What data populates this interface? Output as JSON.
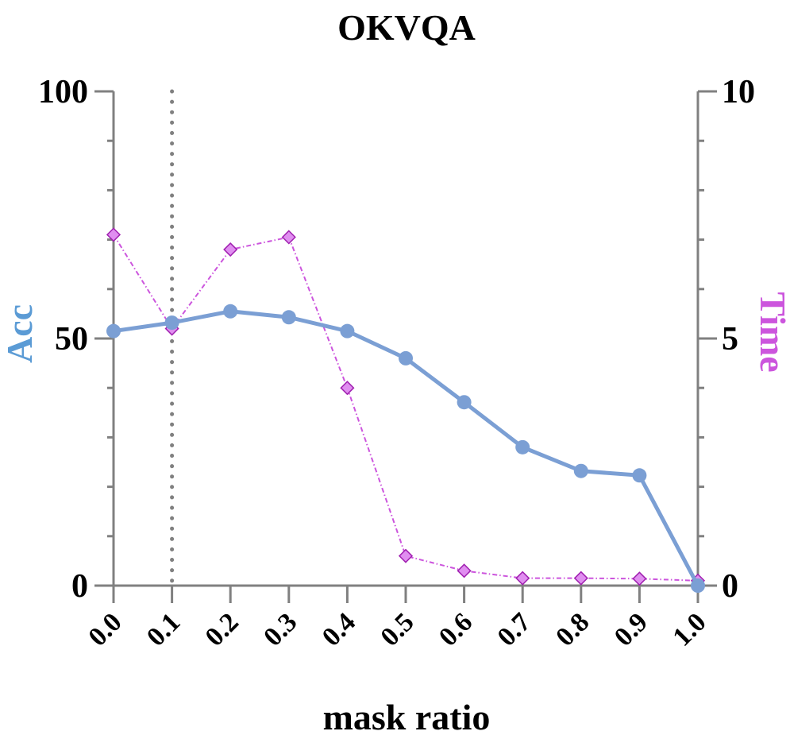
{
  "chart_data": {
    "type": "line",
    "title": "OKVQA",
    "xlabel": "mask ratio",
    "ylabel_left": "Acc",
    "ylabel_right": "Time",
    "x": [
      0.0,
      0.1,
      0.2,
      0.3,
      0.4,
      0.5,
      0.6,
      0.7,
      0.8,
      0.9,
      1.0
    ],
    "x_tick_labels": [
      "0.0",
      "0.1",
      "0.2",
      "0.3",
      "0.4",
      "0.5",
      "0.6",
      "0.7",
      "0.8",
      "0.9",
      "1.0"
    ],
    "ylim_left": [
      0,
      100
    ],
    "ylim_right": [
      0,
      10
    ],
    "left_ticks": [
      "0",
      "50",
      "100"
    ],
    "right_ticks": [
      "0",
      "5",
      "10"
    ],
    "vline_x": 0.1,
    "series": [
      {
        "axis": "left",
        "color": "#7b9fd4",
        "marker": "circle",
        "values": [
          51.5,
          53.2,
          55.5,
          54.3,
          51.5,
          46.0,
          37.1,
          28.0,
          23.2,
          22.3,
          0.0
        ]
      },
      {
        "axis": "right",
        "color": "#cc55dd",
        "marker": "diamond",
        "values": [
          7.1,
          5.2,
          6.8,
          7.05,
          4.0,
          0.6,
          0.3,
          0.15,
          0.15,
          0.14,
          0.1
        ]
      }
    ],
    "colors": {
      "axis": "#808080",
      "vline": "#808080",
      "acc_label": "#5b9bd5",
      "time_label": "#cc55dd"
    }
  }
}
